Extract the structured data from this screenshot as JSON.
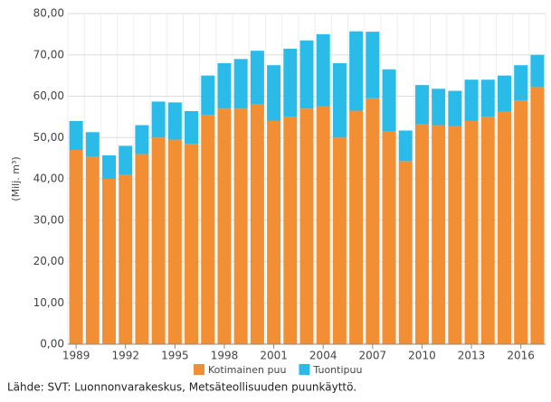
{
  "chart_data": {
    "type": "stacked-bar",
    "y_label": "(Milj. m³)",
    "source": "Lähde: SVT: Luonnonvarakeskus, Metsäteollisuuden puunkäyttö.",
    "categories": [
      "1989",
      null,
      null,
      "1992",
      null,
      null,
      "1995",
      null,
      null,
      "1998",
      null,
      null,
      "2001",
      null,
      null,
      "2004",
      null,
      null,
      "2007",
      null,
      null,
      "2010",
      null,
      null,
      "2013",
      null,
      null,
      "2016",
      null
    ],
    "series": [
      {
        "name": "Kotimainen puu",
        "color": "#f28f35",
        "values": [
          47,
          45.3,
          40,
          41,
          46,
          50,
          49.5,
          48.5,
          55.5,
          57,
          57,
          58,
          54,
          55,
          57,
          57.5,
          50,
          56.5,
          59.5,
          51.5,
          44.3,
          53.2,
          53,
          52.7,
          54,
          55,
          56.2,
          59,
          62.2
        ]
      },
      {
        "name": "Tuontipuu",
        "color": "#2bbbe8",
        "values": [
          7,
          6,
          5.7,
          7,
          7,
          8.7,
          9,
          7.9,
          9.5,
          11,
          12,
          13,
          13.5,
          16.5,
          16.5,
          17.5,
          18,
          19.2,
          16.1,
          15,
          7.4,
          9.5,
          8.8,
          8.6,
          10,
          9,
          8.8,
          8.5,
          7.8
        ]
      }
    ],
    "ylim": [
      0,
      80
    ],
    "yticks": [
      {
        "value": 0,
        "label": "0,00"
      },
      {
        "value": 10,
        "label": "10,00"
      },
      {
        "value": 20,
        "label": "20,00"
      },
      {
        "value": 30,
        "label": "30,00"
      },
      {
        "value": 40,
        "label": "40,00"
      },
      {
        "value": 50,
        "label": "50,00"
      },
      {
        "value": 60,
        "label": "60,00"
      },
      {
        "value": 70,
        "label": "70,00"
      },
      {
        "value": 80,
        "label": "80,00"
      }
    ],
    "grid": true
  }
}
